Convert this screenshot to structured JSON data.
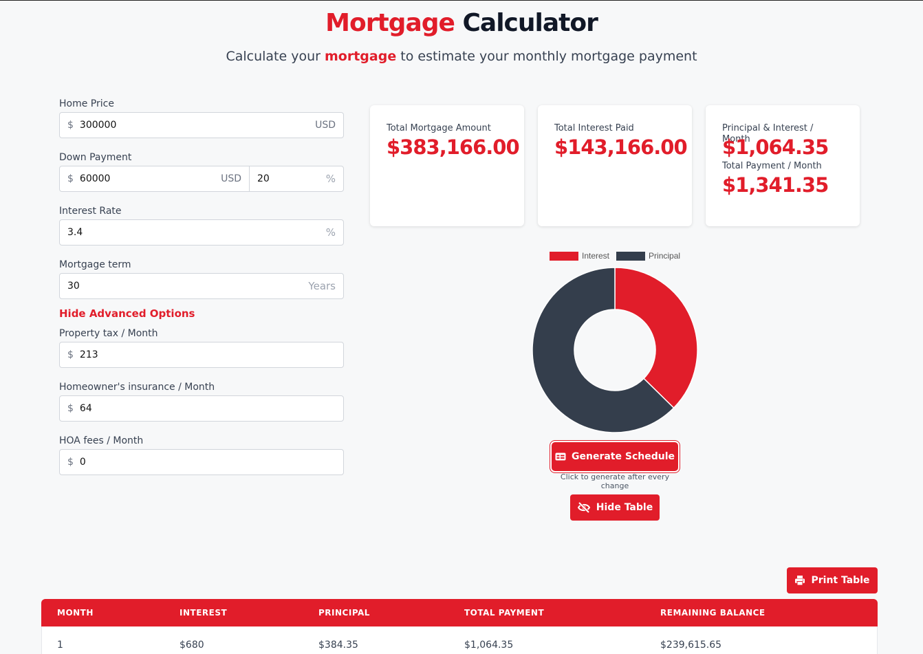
{
  "header": {
    "title_part1": "Mortgage",
    "title_part2": "Calculator",
    "subtitle_before": "Calculate your",
    "subtitle_highlight": "mortgage",
    "subtitle_after": "to estimate your monthly mortgage payment"
  },
  "form": {
    "home_price": {
      "label": "Home Price",
      "prefix": "$",
      "value": "300000",
      "suffix": "USD"
    },
    "down_payment": {
      "label": "Down Payment",
      "prefix": "$",
      "value": "60000",
      "suffix": "USD",
      "percent_value": "20",
      "percent_suffix": "%"
    },
    "interest_rate": {
      "label": "Interest Rate",
      "value": "3.4",
      "suffix": "%"
    },
    "mortgage_term": {
      "label": "Mortgage term",
      "value": "30",
      "suffix": "Years"
    },
    "advanced_toggle": "Hide Advanced Options",
    "property_tax": {
      "label": "Property tax / Month",
      "prefix": "$",
      "value": "213"
    },
    "insurance": {
      "label": "Homeowner's insurance / Month",
      "prefix": "$",
      "value": "64"
    },
    "hoa": {
      "label": "HOA fees / Month",
      "prefix": "$",
      "value": "0"
    }
  },
  "summary": {
    "total_mortgage": {
      "label": "Total Mortgage Amount",
      "value": "$383,166.00"
    },
    "total_interest": {
      "label": "Total Interest Paid",
      "value": "$143,166.00"
    },
    "pi_month": {
      "label": "Principal & Interest / Month",
      "value": "$1,064.35"
    },
    "total_month": {
      "label": "Total Payment / Month",
      "value": "$1,341.35"
    }
  },
  "chart_data": {
    "type": "pie",
    "labels": [
      "Interest",
      "Principal"
    ],
    "values": [
      143166.0,
      240000.0
    ],
    "colors": [
      "#e11d2a",
      "#343e4c"
    ],
    "legend_position": "top",
    "donut": true
  },
  "actions": {
    "generate_label": "Generate Schedule",
    "generate_hint": "Click to generate after every change",
    "hide_table_label": "Hide Table",
    "print_label": "Print Table"
  },
  "table": {
    "columns": [
      "MONTH",
      "INTEREST",
      "PRINCIPAL",
      "TOTAL PAYMENT",
      "REMAINING BALANCE"
    ],
    "rows": [
      [
        "1",
        "$680",
        "$384.35",
        "$1,064.35",
        "$239,615.65"
      ]
    ]
  },
  "colors": {
    "accent": "#e11d2a",
    "dark": "#343e4c"
  }
}
